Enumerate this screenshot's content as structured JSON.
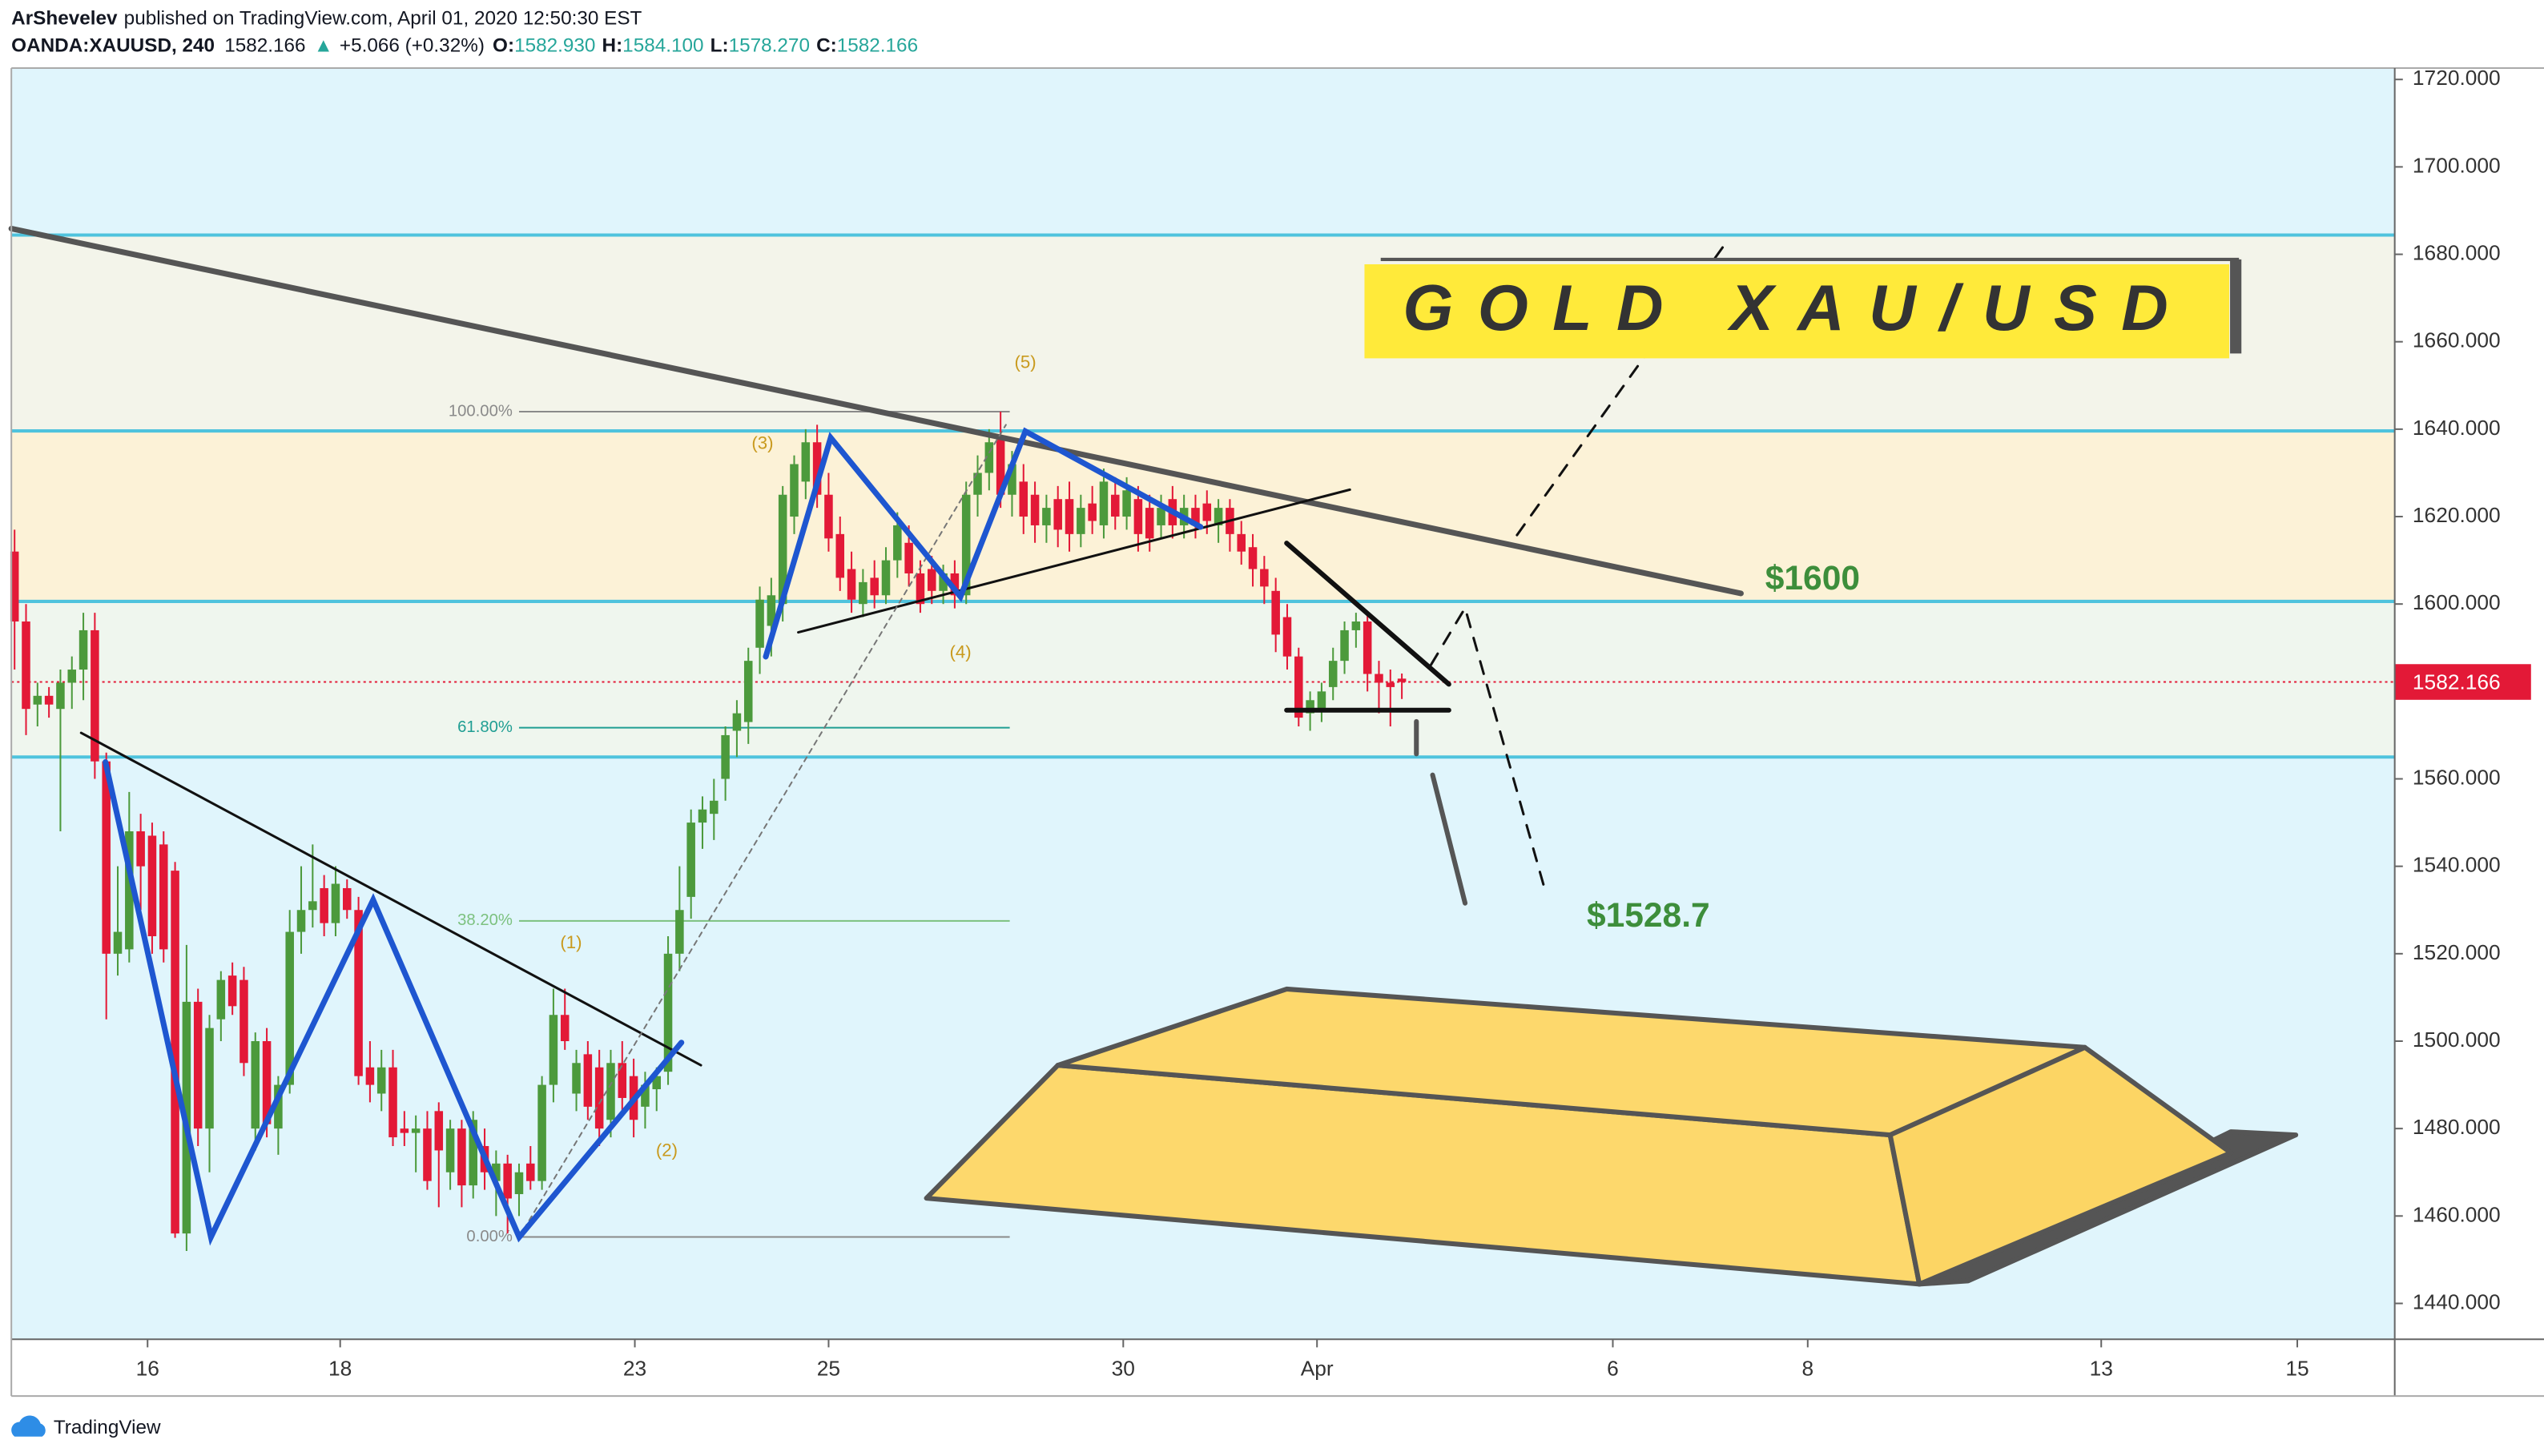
{
  "header": {
    "publisher": "ArShevelev",
    "published": "published on TradingView.com, April 01, 2020 12:50:30 EST",
    "symbol": "OANDA:XAUUSD, 240",
    "price": "1582.166",
    "arrow": "▲",
    "change": "+5.066 (+0.32%)",
    "ohlc": [
      {
        "label": "O:",
        "value": "1582.930"
      },
      {
        "label": "H:",
        "value": "1584.100"
      },
      {
        "label": "L:",
        "value": "1578.270"
      },
      {
        "label": "C:",
        "value": "1582.166"
      }
    ]
  },
  "chart_data": {
    "type": "candlestick",
    "title": "GOLD XAU/USD",
    "up_color": "#4c9a3c",
    "down_color": "#e31937",
    "xlim": [
      -0.28,
      207.6
    ],
    "xticks": [
      {
        "value": 11.6,
        "label": "16"
      },
      {
        "value": 28.4,
        "label": "18"
      },
      {
        "value": 54.1,
        "label": "23"
      },
      {
        "value": 71.0,
        "label": "25"
      },
      {
        "value": 96.7,
        "label": "30"
      },
      {
        "value": 113.6,
        "label": "Apr"
      },
      {
        "value": 139.4,
        "label": "6"
      },
      {
        "value": 156.4,
        "label": "8"
      },
      {
        "value": 182.0,
        "label": "13"
      },
      {
        "value": 199.1,
        "label": "15"
      }
    ],
    "ylim": [
      1431.8,
      1722.6
    ],
    "yticks": [
      {
        "value": 1440,
        "label": "1440.000"
      },
      {
        "value": 1460,
        "label": "1460.000"
      },
      {
        "value": 1480,
        "label": "1480.000"
      },
      {
        "value": 1500,
        "label": "1500.000"
      },
      {
        "value": 1520,
        "label": "1520.000"
      },
      {
        "value": 1540,
        "label": "1540.000"
      },
      {
        "value": 1560,
        "label": "1560.000"
      },
      {
        "value": 1580,
        "label": "1580.000"
      },
      {
        "value": 1600,
        "label": "1600.000"
      },
      {
        "value": 1620,
        "label": "1620.000"
      },
      {
        "value": 1640,
        "label": "1640.000"
      },
      {
        "value": 1660,
        "label": "1660.000"
      },
      {
        "value": 1680,
        "label": "1680.000"
      },
      {
        "value": 1700,
        "label": "1700.000"
      },
      {
        "value": 1720,
        "label": "1720.000"
      }
    ],
    "levels": [
      1684.4,
      1639.6,
      1600.6,
      1565
    ],
    "level_color": "#4fc3dd",
    "band_colors": [
      "#f3f4ea",
      "#fcf2d7",
      "#eff6ee"
    ],
    "fib_start": 44,
    "fib_end": 86.8,
    "fib": [
      {
        "price": 1644,
        "label": "100.00%",
        "color": "#8a8a8a"
      },
      {
        "price": 1571.7,
        "label": "61.80%",
        "color": "#1f9e93"
      },
      {
        "price": 1527.5,
        "label": "38.20%",
        "color": "#7cc17f"
      },
      {
        "price": 1455.2,
        "label": "0.00%",
        "color": "#8a8a8a"
      }
    ],
    "wave_labels": [
      "(1)",
      "(2)",
      "(3)",
      "(4)",
      "(5)"
    ],
    "targets": [
      "$1600",
      "$1528.7"
    ],
    "last_price": 1582.166,
    "last_color": "#e31937",
    "ohlc": [
      [
        1612,
        1617,
        1585,
        1596
      ],
      [
        1596,
        1600,
        1570,
        1576
      ],
      [
        1577,
        1582,
        1572,
        1579
      ],
      [
        1579,
        1581,
        1574,
        1577
      ],
      [
        1576,
        1585,
        1548,
        1582
      ],
      [
        1582,
        1588,
        1576,
        1585
      ],
      [
        1585,
        1598,
        1578,
        1594
      ],
      [
        1594,
        1598,
        1560,
        1564
      ],
      [
        1564,
        1566,
        1505,
        1520
      ],
      [
        1520,
        1540,
        1515,
        1525
      ],
      [
        1521,
        1557,
        1518,
        1548
      ],
      [
        1548,
        1552,
        1530,
        1540
      ],
      [
        1547,
        1550,
        1520,
        1524
      ],
      [
        1545,
        1548,
        1518,
        1521
      ],
      [
        1539,
        1541,
        1455,
        1456
      ],
      [
        1456,
        1522,
        1452,
        1509
      ],
      [
        1509,
        1512,
        1476,
        1480
      ],
      [
        1480,
        1506,
        1470,
        1503
      ],
      [
        1505,
        1516,
        1500,
        1514
      ],
      [
        1515,
        1518,
        1506,
        1508
      ],
      [
        1514,
        1517,
        1492,
        1495
      ],
      [
        1480,
        1502,
        1475,
        1500
      ],
      [
        1500,
        1503,
        1478,
        1481
      ],
      [
        1480,
        1492,
        1474,
        1490
      ],
      [
        1490,
        1530,
        1488,
        1525
      ],
      [
        1525,
        1540,
        1520,
        1530
      ],
      [
        1530,
        1545,
        1526,
        1532
      ],
      [
        1535,
        1538,
        1524,
        1527
      ],
      [
        1527,
        1540,
        1524,
        1536
      ],
      [
        1535,
        1537,
        1528,
        1530
      ],
      [
        1530,
        1533,
        1490,
        1492
      ],
      [
        1494,
        1500,
        1486,
        1490
      ],
      [
        1488,
        1498,
        1484,
        1494
      ],
      [
        1494,
        1498,
        1476,
        1478
      ],
      [
        1480,
        1484,
        1476,
        1479
      ],
      [
        1479,
        1483,
        1470,
        1480
      ],
      [
        1480,
        1484,
        1466,
        1468
      ],
      [
        1484,
        1486,
        1462,
        1475
      ],
      [
        1470,
        1482,
        1466,
        1480
      ],
      [
        1480,
        1482,
        1462,
        1467
      ],
      [
        1467,
        1484,
        1464,
        1482
      ],
      [
        1476,
        1480,
        1466,
        1470
      ],
      [
        1468,
        1475,
        1460,
        1472
      ],
      [
        1472,
        1474,
        1456,
        1464
      ],
      [
        1465,
        1472,
        1460,
        1470
      ],
      [
        1472,
        1476,
        1466,
        1468
      ],
      [
        1468,
        1492,
        1466,
        1490
      ],
      [
        1490,
        1512,
        1486,
        1506
      ],
      [
        1506,
        1512,
        1498,
        1500
      ],
      [
        1488,
        1498,
        1484,
        1495
      ],
      [
        1497,
        1500,
        1482,
        1485
      ],
      [
        1494,
        1498,
        1476,
        1480
      ],
      [
        1482,
        1498,
        1478,
        1495
      ],
      [
        1495,
        1500,
        1484,
        1487
      ],
      [
        1492,
        1496,
        1478,
        1482
      ],
      [
        1485,
        1493,
        1480,
        1490
      ],
      [
        1489,
        1494,
        1484,
        1492
      ],
      [
        1493,
        1524,
        1490,
        1520
      ],
      [
        1520,
        1540,
        1516,
        1530
      ],
      [
        1533,
        1553,
        1528,
        1550
      ],
      [
        1550,
        1556,
        1544,
        1553
      ],
      [
        1552,
        1560,
        1546,
        1555
      ],
      [
        1560,
        1572,
        1555,
        1570
      ],
      [
        1571,
        1578,
        1565,
        1575
      ],
      [
        1573,
        1590,
        1568,
        1587
      ],
      [
        1590,
        1604,
        1584,
        1601
      ],
      [
        1595,
        1606,
        1588,
        1602
      ],
      [
        1600,
        1627,
        1596,
        1625
      ],
      [
        1620,
        1634,
        1616,
        1632
      ],
      [
        1628,
        1640,
        1624,
        1637
      ],
      [
        1637,
        1641,
        1622,
        1625
      ],
      [
        1625,
        1630,
        1612,
        1615
      ],
      [
        1616,
        1620,
        1603,
        1606
      ],
      [
        1608,
        1612,
        1598,
        1601
      ],
      [
        1600,
        1608,
        1597,
        1605
      ],
      [
        1606,
        1610,
        1599,
        1602
      ],
      [
        1602,
        1613,
        1600,
        1610
      ],
      [
        1610,
        1621,
        1606,
        1618
      ],
      [
        1614,
        1618,
        1604,
        1607
      ],
      [
        1607,
        1610,
        1598,
        1600
      ],
      [
        1608,
        1611,
        1600,
        1603
      ],
      [
        1603,
        1609,
        1600,
        1607
      ],
      [
        1607,
        1610,
        1599,
        1602
      ],
      [
        1602,
        1628,
        1600,
        1625
      ],
      [
        1625,
        1634,
        1620,
        1630
      ],
      [
        1630,
        1640,
        1626,
        1637
      ],
      [
        1638,
        1644,
        1622,
        1625
      ],
      [
        1625,
        1635,
        1620,
        1632
      ],
      [
        1628,
        1632,
        1616,
        1620
      ],
      [
        1625,
        1628,
        1614,
        1618
      ],
      [
        1618,
        1625,
        1614,
        1622
      ],
      [
        1624,
        1627,
        1613,
        1617
      ],
      [
        1624,
        1628,
        1612,
        1616
      ],
      [
        1616,
        1625,
        1613,
        1622
      ],
      [
        1623,
        1627,
        1616,
        1619
      ],
      [
        1618,
        1631,
        1615,
        1628
      ],
      [
        1625,
        1629,
        1617,
        1620
      ],
      [
        1620,
        1629,
        1617,
        1626
      ],
      [
        1624,
        1627,
        1612,
        1616
      ],
      [
        1622,
        1625,
        1612,
        1615
      ],
      [
        1618,
        1625,
        1615,
        1622
      ],
      [
        1624,
        1627,
        1615,
        1618
      ],
      [
        1618,
        1625,
        1615,
        1622
      ],
      [
        1622,
        1625,
        1615,
        1618
      ],
      [
        1623,
        1626,
        1616,
        1619
      ],
      [
        1618,
        1624,
        1614,
        1622
      ],
      [
        1622,
        1624,
        1612,
        1616
      ],
      [
        1616,
        1619,
        1609,
        1612
      ],
      [
        1613,
        1616,
        1604,
        1608
      ],
      [
        1608,
        1611,
        1600,
        1604
      ],
      [
        1603,
        1606,
        1589,
        1593
      ],
      [
        1597,
        1600,
        1585,
        1588
      ],
      [
        1588,
        1590,
        1572,
        1574
      ],
      [
        1575,
        1580,
        1571,
        1578
      ],
      [
        1576,
        1582,
        1573,
        1580
      ],
      [
        1581,
        1590,
        1578,
        1587
      ],
      [
        1587,
        1596,
        1584,
        1594
      ],
      [
        1594,
        1598,
        1590,
        1596
      ],
      [
        1596,
        1598,
        1580,
        1584
      ],
      [
        1584,
        1587,
        1575,
        1582
      ],
      [
        1582,
        1585,
        1572,
        1581
      ],
      [
        1582.93,
        1584.1,
        1578.27,
        1582.166
      ]
    ]
  },
  "footer": "TradingView"
}
